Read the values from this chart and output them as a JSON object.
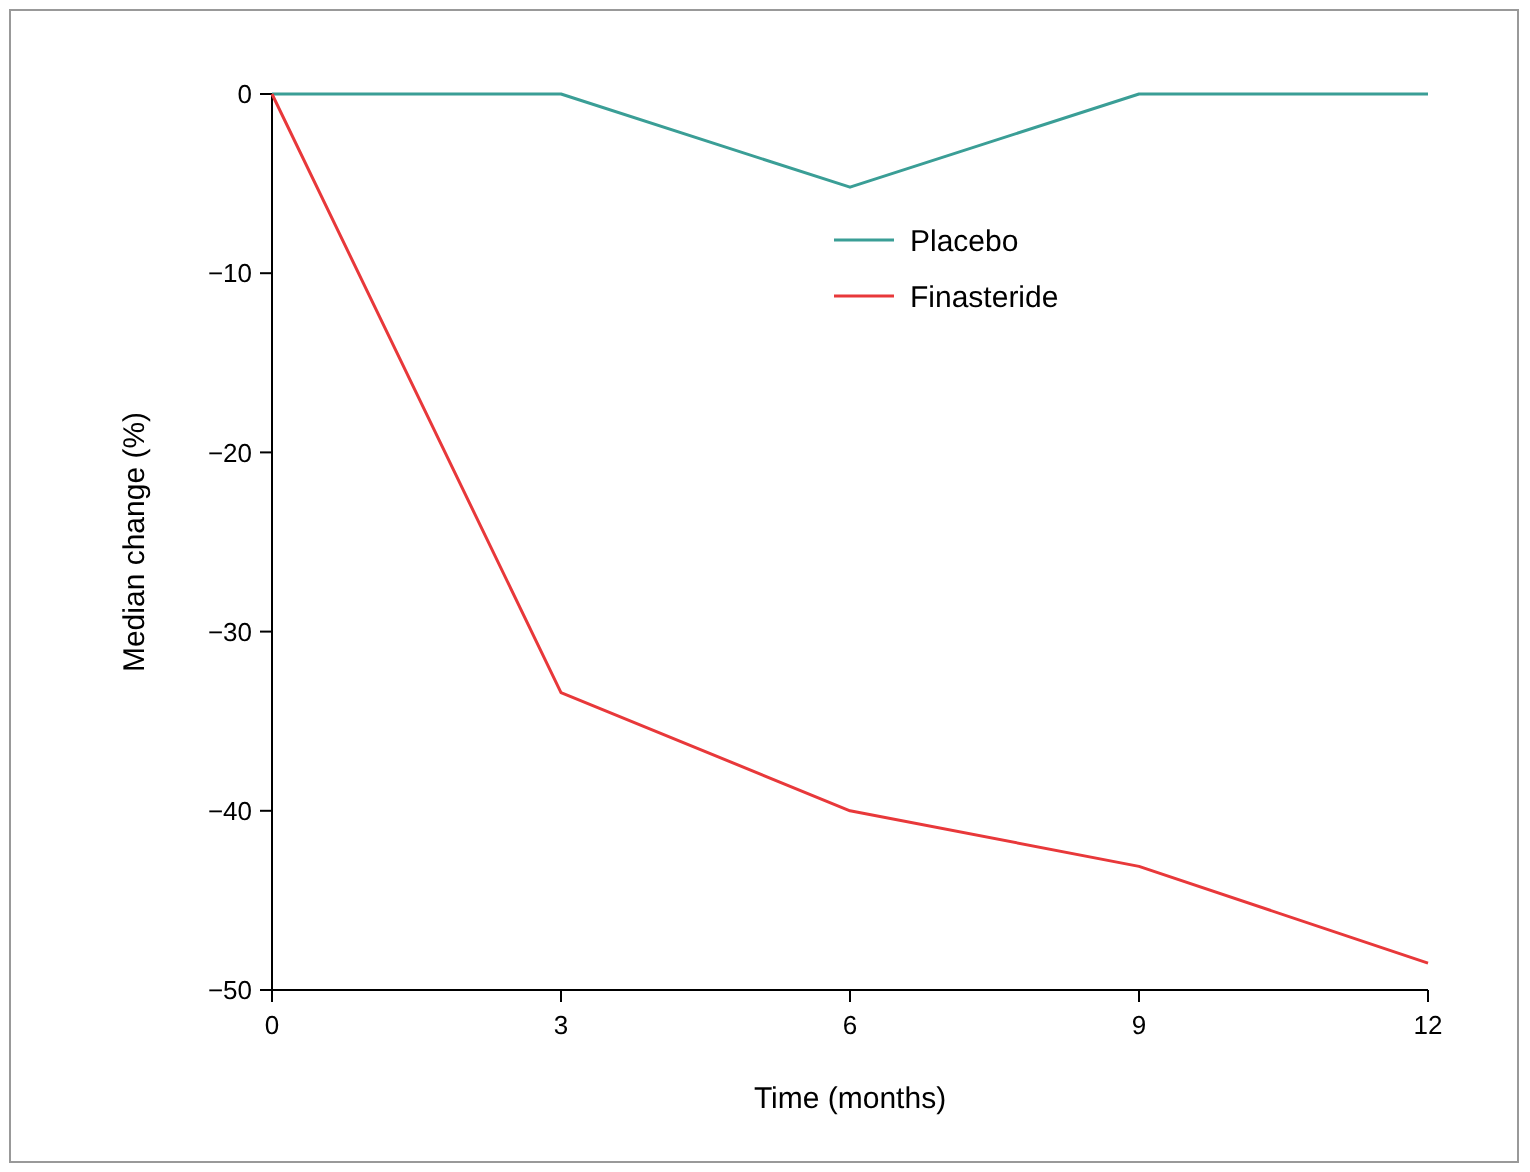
{
  "chart_data": {
    "type": "line",
    "xlabel": "Time (months)",
    "ylabel": "Median change (%)",
    "x": [
      0,
      3,
      6,
      9,
      12
    ],
    "series": [
      {
        "name": "Placebo",
        "color": "#3a9e96",
        "values": [
          0,
          0,
          -5.2,
          0,
          0
        ]
      },
      {
        "name": "Finasteride",
        "color": "#e8383a",
        "values": [
          0,
          -33.4,
          -40,
          -43.1,
          -48.5
        ]
      }
    ],
    "xlim": [
      0,
      12
    ],
    "xticks": [
      0,
      3,
      6,
      9,
      12
    ],
    "ylim": [
      -50,
      0
    ],
    "yticks": [
      0,
      -10,
      -20,
      -30,
      -40,
      -50
    ],
    "grid": false,
    "legend": "top right",
    "marker": "none",
    "line_style": "solid"
  }
}
